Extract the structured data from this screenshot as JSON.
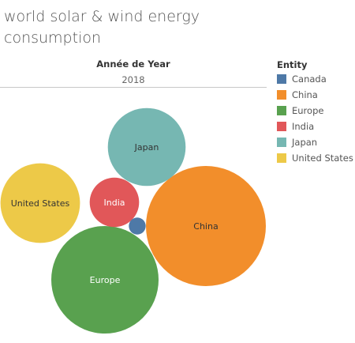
{
  "title": "world  solar & wind energy consumption",
  "column_header": "Année de Year",
  "column_value": "2018",
  "legend": {
    "title": "Entity",
    "items": [
      {
        "label": "Canada",
        "color": "#4e79a7"
      },
      {
        "label": "China",
        "color": "#f28e2b"
      },
      {
        "label": "Europe",
        "color": "#59a14f"
      },
      {
        "label": "India",
        "color": "#e15759"
      },
      {
        "label": "Japan",
        "color": "#76b7b2"
      },
      {
        "label": "United States",
        "color": "#edc948"
      }
    ]
  },
  "chart_data": {
    "type": "bubble",
    "title": "world  solar & wind energy consumption",
    "column_header": "Année de Year",
    "column_value": "2018",
    "legend_title": "Entity",
    "legend_position": "right",
    "bubbles": [
      {
        "entity": "China",
        "value": 100,
        "color": "#f28e2b",
        "label": "China",
        "label_color": "#333333"
      },
      {
        "entity": "Europe",
        "value": 80,
        "color": "#59a14f",
        "label": "Europe",
        "label_color": "#ffffff"
      },
      {
        "entity": "United States",
        "value": 44,
        "color": "#edc948",
        "label": "United States",
        "label_color": "#333333"
      },
      {
        "entity": "Japan",
        "value": 42,
        "color": "#76b7b2",
        "label": "Japan",
        "label_color": "#333333"
      },
      {
        "entity": "India",
        "value": 17,
        "color": "#e15759",
        "label": "India",
        "label_color": "#ffffff"
      },
      {
        "entity": "Canada",
        "value": 2,
        "color": "#4e79a7",
        "label": "",
        "label_color": "#ffffff"
      }
    ]
  }
}
